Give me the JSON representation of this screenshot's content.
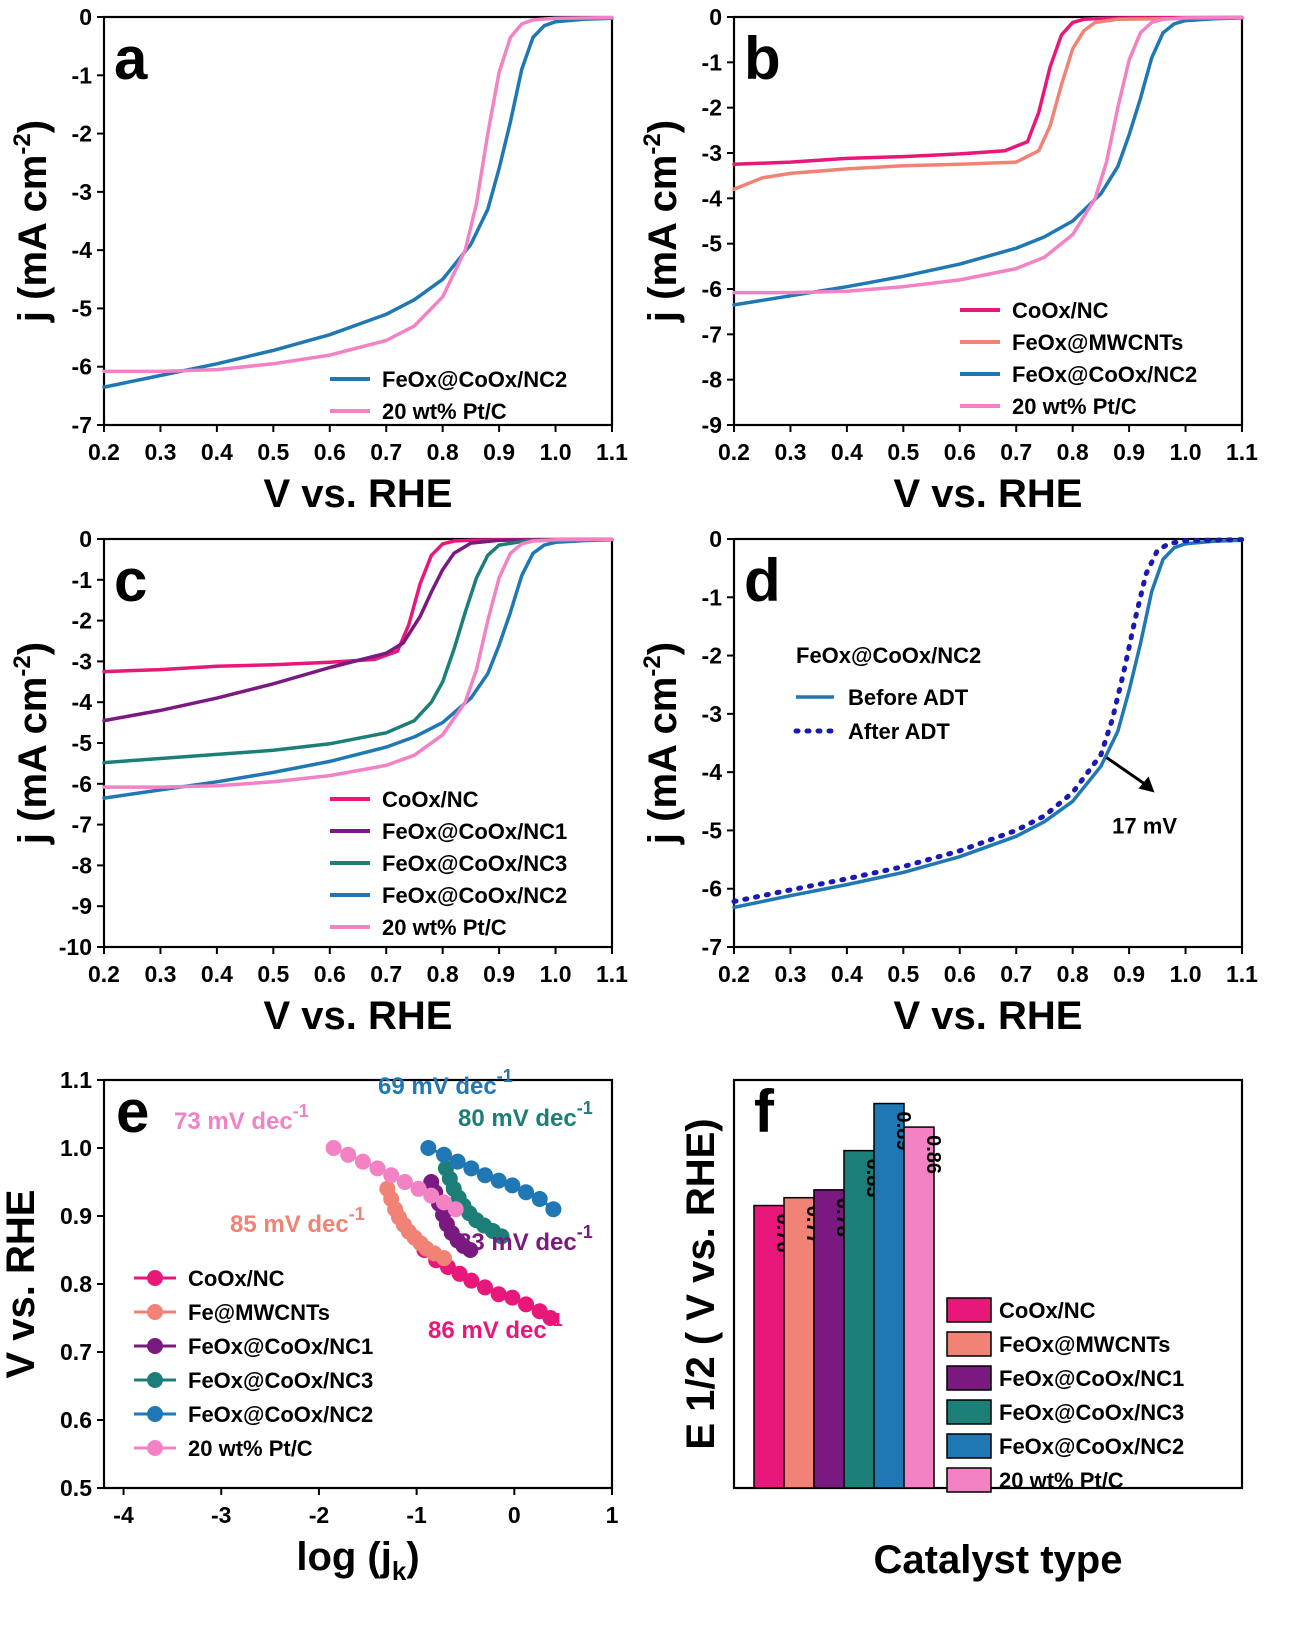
{
  "colors": {
    "CoOx/NC": "#e8177a",
    "FeOx@MWCNTs": "#f08276",
    "FeOx@CoOx/NC1": "#7a1a80",
    "FeOx@CoOx/NC3": "#1b7f78",
    "FeOx@CoOx/NC2": "#1f77b4",
    "20 wt% Pt/C": "#f382c4",
    "after_adt": "#1a1ab0"
  },
  "chart_data": [
    {
      "id": "a",
      "panel_label": "a",
      "type": "line",
      "xlabel": "V vs. RHE",
      "ylabel_main": "j (mA cm",
      "ylabel_sup": "-2",
      "ylabel_tail": ")",
      "xlim": [
        0.2,
        1.1
      ],
      "ylim": [
        -7,
        0
      ],
      "xticks": [
        0.2,
        0.3,
        0.4,
        0.5,
        0.6,
        0.7,
        0.8,
        0.9,
        1.0,
        1.1
      ],
      "xtick_labels": [
        "0.2",
        "0.3",
        "0.4",
        "0.5",
        "0.6",
        "0.7",
        "0.8",
        "0.9",
        "1.0",
        "1.1"
      ],
      "yticks": [
        0,
        -1,
        -2,
        -3,
        -4,
        -5,
        -6,
        -7
      ],
      "ytick_labels": [
        "0",
        "-1",
        "-2",
        "-3",
        "-4",
        "-5",
        "-6",
        "-7"
      ],
      "legend_position": "bottom-right",
      "series": [
        {
          "name": "FeOx@CoOx/NC2",
          "color": "#1f77b4",
          "x": [
            0.2,
            0.3,
            0.4,
            0.5,
            0.6,
            0.7,
            0.75,
            0.8,
            0.85,
            0.88,
            0.9,
            0.92,
            0.94,
            0.96,
            0.98,
            1.0,
            1.05,
            1.1
          ],
          "y": [
            -6.35,
            -6.15,
            -5.95,
            -5.72,
            -5.45,
            -5.1,
            -4.85,
            -4.5,
            -3.9,
            -3.3,
            -2.6,
            -1.8,
            -0.9,
            -0.35,
            -0.15,
            -0.08,
            -0.04,
            -0.02
          ]
        },
        {
          "name": "20 wt% Pt/C",
          "color": "#f382c4",
          "x": [
            0.2,
            0.3,
            0.4,
            0.5,
            0.6,
            0.7,
            0.75,
            0.8,
            0.84,
            0.86,
            0.88,
            0.9,
            0.92,
            0.94,
            0.96,
            1.0,
            1.1
          ],
          "y": [
            -6.08,
            -6.08,
            -6.05,
            -5.95,
            -5.8,
            -5.55,
            -5.3,
            -4.8,
            -4.0,
            -3.2,
            -2.0,
            -0.95,
            -0.35,
            -0.12,
            -0.05,
            -0.02,
            -0.01
          ]
        }
      ]
    },
    {
      "id": "b",
      "panel_label": "b",
      "type": "line",
      "xlabel": "V vs. RHE",
      "ylabel_main": "j (mA cm",
      "ylabel_sup": "-2",
      "ylabel_tail": ")",
      "xlim": [
        0.2,
        1.1
      ],
      "ylim": [
        -9,
        0
      ],
      "xticks": [
        0.2,
        0.3,
        0.4,
        0.5,
        0.6,
        0.7,
        0.8,
        0.9,
        1.0,
        1.1
      ],
      "xtick_labels": [
        "0.2",
        "0.3",
        "0.4",
        "0.5",
        "0.6",
        "0.7",
        "0.8",
        "0.9",
        "1.0",
        "1.1"
      ],
      "yticks": [
        0,
        -1,
        -2,
        -3,
        -4,
        -5,
        -6,
        -7,
        -8,
        -9
      ],
      "ytick_labels": [
        "0",
        "-1",
        "-2",
        "-3",
        "-4",
        "-5",
        "-6",
        "-7",
        "-8",
        "-9"
      ],
      "legend_position": "bottom-right",
      "series": [
        {
          "name": "CoOx/NC",
          "color": "#e8177a",
          "x": [
            0.2,
            0.3,
            0.4,
            0.5,
            0.6,
            0.68,
            0.72,
            0.74,
            0.76,
            0.78,
            0.8,
            0.82,
            0.85,
            0.9,
            1.1
          ],
          "y": [
            -3.25,
            -3.2,
            -3.12,
            -3.08,
            -3.02,
            -2.95,
            -2.75,
            -2.1,
            -1.1,
            -0.4,
            -0.12,
            -0.05,
            -0.03,
            -0.02,
            -0.01
          ]
        },
        {
          "name": "FeOx@MWCNTs",
          "color": "#f08276",
          "x": [
            0.2,
            0.25,
            0.3,
            0.4,
            0.5,
            0.6,
            0.7,
            0.74,
            0.76,
            0.78,
            0.8,
            0.82,
            0.84,
            0.88,
            1.1
          ],
          "y": [
            -3.8,
            -3.55,
            -3.45,
            -3.35,
            -3.28,
            -3.25,
            -3.2,
            -2.95,
            -2.4,
            -1.5,
            -0.7,
            -0.3,
            -0.12,
            -0.05,
            -0.02
          ]
        },
        {
          "name": "FeOx@CoOx/NC2",
          "color": "#1f77b4",
          "x": [
            0.2,
            0.3,
            0.4,
            0.5,
            0.6,
            0.7,
            0.75,
            0.8,
            0.85,
            0.88,
            0.9,
            0.92,
            0.94,
            0.96,
            0.98,
            1.0,
            1.05,
            1.1
          ],
          "y": [
            -6.35,
            -6.15,
            -5.95,
            -5.72,
            -5.45,
            -5.1,
            -4.85,
            -4.5,
            -3.9,
            -3.3,
            -2.6,
            -1.8,
            -0.9,
            -0.35,
            -0.15,
            -0.08,
            -0.04,
            -0.02
          ]
        },
        {
          "name": "20 wt% Pt/C",
          "color": "#f382c4",
          "x": [
            0.2,
            0.3,
            0.4,
            0.5,
            0.6,
            0.7,
            0.75,
            0.8,
            0.84,
            0.86,
            0.88,
            0.9,
            0.92,
            0.94,
            0.96,
            1.0,
            1.1
          ],
          "y": [
            -6.08,
            -6.08,
            -6.05,
            -5.95,
            -5.8,
            -5.55,
            -5.3,
            -4.8,
            -4.0,
            -3.2,
            -2.0,
            -0.95,
            -0.35,
            -0.12,
            -0.05,
            -0.02,
            -0.01
          ]
        }
      ]
    },
    {
      "id": "c",
      "panel_label": "c",
      "type": "line",
      "xlabel": "V vs. RHE",
      "ylabel_main": "j (mA cm",
      "ylabel_sup": "-2",
      "ylabel_tail": ")",
      "xlim": [
        0.2,
        1.1
      ],
      "ylim": [
        -10,
        0
      ],
      "xticks": [
        0.2,
        0.3,
        0.4,
        0.5,
        0.6,
        0.7,
        0.8,
        0.9,
        1.0,
        1.1
      ],
      "xtick_labels": [
        "0.2",
        "0.3",
        "0.4",
        "0.5",
        "0.6",
        "0.7",
        "0.8",
        "0.9",
        "1.0",
        "1.1"
      ],
      "yticks": [
        0,
        -1,
        -2,
        -3,
        -4,
        -5,
        -6,
        -7,
        -8,
        -9,
        -10
      ],
      "ytick_labels": [
        "0",
        "-1",
        "-2",
        "-3",
        "-4",
        "-5",
        "-6",
        "-7",
        "-8",
        "-9",
        "-10"
      ],
      "legend_position": "bottom-right",
      "series": [
        {
          "name": "CoOx/NC",
          "color": "#e8177a",
          "x": [
            0.2,
            0.3,
            0.4,
            0.5,
            0.6,
            0.68,
            0.72,
            0.74,
            0.76,
            0.78,
            0.8,
            0.82,
            0.85,
            0.9,
            1.1
          ],
          "y": [
            -3.25,
            -3.2,
            -3.12,
            -3.08,
            -3.02,
            -2.95,
            -2.75,
            -2.1,
            -1.1,
            -0.4,
            -0.12,
            -0.05,
            -0.03,
            -0.02,
            -0.01
          ]
        },
        {
          "name": "FeOx@CoOx/NC1",
          "color": "#7a1a80",
          "x": [
            0.2,
            0.3,
            0.4,
            0.5,
            0.6,
            0.7,
            0.73,
            0.76,
            0.78,
            0.8,
            0.82,
            0.85,
            0.9,
            1.1
          ],
          "y": [
            -4.45,
            -4.2,
            -3.9,
            -3.55,
            -3.15,
            -2.8,
            -2.55,
            -1.9,
            -1.3,
            -0.75,
            -0.35,
            -0.1,
            -0.03,
            -0.01
          ]
        },
        {
          "name": "FeOx@CoOx/NC3",
          "color": "#1b7f78",
          "x": [
            0.2,
            0.3,
            0.4,
            0.5,
            0.6,
            0.7,
            0.75,
            0.78,
            0.8,
            0.82,
            0.84,
            0.86,
            0.88,
            0.9,
            0.95,
            1.1
          ],
          "y": [
            -5.48,
            -5.38,
            -5.28,
            -5.18,
            -5.02,
            -4.75,
            -4.45,
            -4.0,
            -3.5,
            -2.7,
            -1.8,
            -0.95,
            -0.4,
            -0.15,
            -0.04,
            -0.01
          ]
        },
        {
          "name": "FeOx@CoOx/NC2",
          "color": "#1f77b4",
          "x": [
            0.2,
            0.3,
            0.4,
            0.5,
            0.6,
            0.7,
            0.75,
            0.8,
            0.85,
            0.88,
            0.9,
            0.92,
            0.94,
            0.96,
            0.98,
            1.0,
            1.05,
            1.1
          ],
          "y": [
            -6.35,
            -6.15,
            -5.95,
            -5.72,
            -5.45,
            -5.1,
            -4.85,
            -4.5,
            -3.9,
            -3.3,
            -2.6,
            -1.8,
            -0.9,
            -0.35,
            -0.15,
            -0.08,
            -0.04,
            -0.02
          ]
        },
        {
          "name": "20 wt% Pt/C",
          "color": "#f382c4",
          "x": [
            0.2,
            0.3,
            0.4,
            0.5,
            0.6,
            0.7,
            0.75,
            0.8,
            0.84,
            0.86,
            0.88,
            0.9,
            0.92,
            0.94,
            0.96,
            1.0,
            1.1
          ],
          "y": [
            -6.08,
            -6.08,
            -6.05,
            -5.95,
            -5.8,
            -5.55,
            -5.3,
            -4.8,
            -4.0,
            -3.2,
            -2.0,
            -0.95,
            -0.35,
            -0.12,
            -0.05,
            -0.02,
            -0.01
          ]
        }
      ]
    },
    {
      "id": "d",
      "panel_label": "d",
      "type": "line",
      "xlabel": "V vs. RHE",
      "ylabel_main": "j (mA cm",
      "ylabel_sup": "-2",
      "ylabel_tail": ")",
      "xlim": [
        0.2,
        1.1
      ],
      "ylim": [
        -7,
        0
      ],
      "xticks": [
        0.2,
        0.3,
        0.4,
        0.5,
        0.6,
        0.7,
        0.8,
        0.9,
        1.0,
        1.1
      ],
      "xtick_labels": [
        "0.2",
        "0.3",
        "0.4",
        "0.5",
        "0.6",
        "0.7",
        "0.8",
        "0.9",
        "1.0",
        "1.1"
      ],
      "yticks": [
        0,
        -1,
        -2,
        -3,
        -4,
        -5,
        -6,
        -7
      ],
      "ytick_labels": [
        "0",
        "-1",
        "-2",
        "-3",
        "-4",
        "-5",
        "-6",
        "-7"
      ],
      "legend_title": "FeOx@CoOx/NC2",
      "legend_position": "top-left",
      "annotation": "17 mV",
      "series": [
        {
          "name": "Before ADT",
          "color": "#1f77b4",
          "dash": "solid",
          "x": [
            0.2,
            0.3,
            0.4,
            0.5,
            0.6,
            0.7,
            0.75,
            0.8,
            0.85,
            0.88,
            0.9,
            0.92,
            0.94,
            0.96,
            0.98,
            1.0,
            1.05,
            1.1
          ],
          "y": [
            -6.32,
            -6.12,
            -5.93,
            -5.72,
            -5.45,
            -5.1,
            -4.85,
            -4.5,
            -3.9,
            -3.3,
            -2.6,
            -1.8,
            -0.9,
            -0.35,
            -0.15,
            -0.08,
            -0.04,
            -0.02
          ]
        },
        {
          "name": "After ADT",
          "color": "#1a1ab0",
          "dash": "dotted",
          "x": [
            0.2,
            0.3,
            0.4,
            0.5,
            0.6,
            0.7,
            0.75,
            0.8,
            0.85,
            0.87,
            0.89,
            0.91,
            0.93,
            0.95,
            0.97,
            1.0,
            1.1
          ],
          "y": [
            -6.22,
            -6.02,
            -5.83,
            -5.62,
            -5.35,
            -5.0,
            -4.75,
            -4.35,
            -3.7,
            -3.1,
            -2.3,
            -1.4,
            -0.6,
            -0.2,
            -0.08,
            -0.03,
            -0.01
          ]
        }
      ]
    },
    {
      "id": "e",
      "panel_label": "e",
      "type": "scatter",
      "xlabel_main": "log (j",
      "xlabel_sub": "k",
      "xlabel_tail": ")",
      "ylabel": "V vs. RHE",
      "xlim": [
        -4.2,
        1
      ],
      "ylim": [
        0.5,
        1.1
      ],
      "xticks": [
        -4,
        -3,
        -2,
        -1,
        0,
        1
      ],
      "xtick_labels": [
        "-4",
        "-3",
        "-2",
        "-1",
        "0",
        "1"
      ],
      "yticks": [
        0.5,
        0.6,
        0.7,
        0.8,
        0.9,
        1.0,
        1.1
      ],
      "ytick_labels": [
        "0.5",
        "0.6",
        "0.7",
        "0.8",
        "0.9",
        "1.0",
        "1.1"
      ],
      "legend_position": "bottom-left",
      "tafel_labels": [
        {
          "text": "73 mV dec",
          "sup": "-1",
          "color": "#f382c4"
        },
        {
          "text": "69 mV dec",
          "sup": "-1",
          "color": "#1f77b4"
        },
        {
          "text": "80 mV dec",
          "sup": "-1",
          "color": "#1b7f78"
        },
        {
          "text": "85 mV dec",
          "sup": "-1",
          "color": "#f08276"
        },
        {
          "text": "83 mV dec",
          "sup": "-1",
          "color": "#7a1a80"
        },
        {
          "text": "86 mV dec",
          "sup": "-1",
          "color": "#e8177a"
        }
      ],
      "series": [
        {
          "name": "CoOx/NC",
          "color": "#e8177a",
          "x": [
            -0.92,
            -0.8,
            -0.68,
            -0.56,
            -0.44,
            -0.3,
            -0.16,
            -0.02,
            0.12,
            0.26,
            0.37
          ],
          "y": [
            0.85,
            0.835,
            0.825,
            0.815,
            0.805,
            0.795,
            0.785,
            0.78,
            0.77,
            0.76,
            0.75
          ]
        },
        {
          "name": "Fe@MWCNTs",
          "color": "#f08276",
          "x": [
            -1.3,
            -1.26,
            -1.22,
            -1.18,
            -1.13,
            -1.08,
            -1.02,
            -0.96,
            -0.9,
            -0.82,
            -0.72
          ],
          "y": [
            0.94,
            0.925,
            0.91,
            0.898,
            0.887,
            0.877,
            0.868,
            0.86,
            0.852,
            0.845,
            0.838
          ]
        },
        {
          "name": "FeOx@CoOx/NC1",
          "color": "#7a1a80",
          "x": [
            -0.85,
            -0.81,
            -0.77,
            -0.73,
            -0.69,
            -0.64,
            -0.58,
            -0.52,
            -0.45
          ],
          "y": [
            0.95,
            0.935,
            0.918,
            0.902,
            0.888,
            0.875,
            0.864,
            0.856,
            0.85
          ]
        },
        {
          "name": "FeOx@CoOx/NC3",
          "color": "#1b7f78",
          "x": [
            -0.7,
            -0.66,
            -0.62,
            -0.57,
            -0.52,
            -0.46,
            -0.39,
            -0.31,
            -0.22,
            -0.13
          ],
          "y": [
            0.97,
            0.955,
            0.94,
            0.927,
            0.915,
            0.904,
            0.894,
            0.886,
            0.878,
            0.87
          ]
        },
        {
          "name": "FeOx@CoOx/NC2",
          "color": "#1f77b4",
          "x": [
            -0.88,
            -0.72,
            -0.58,
            -0.44,
            -0.3,
            -0.16,
            -0.02,
            0.12,
            0.26,
            0.4
          ],
          "y": [
            1.0,
            0.99,
            0.98,
            0.97,
            0.96,
            0.952,
            0.945,
            0.935,
            0.925,
            0.91
          ]
        },
        {
          "name": "20 wt% Pt/C",
          "color": "#f382c4",
          "x": [
            -1.85,
            -1.7,
            -1.55,
            -1.4,
            -1.26,
            -1.12,
            -0.98,
            -0.85,
            -0.72,
            -0.6
          ],
          "y": [
            1.0,
            0.99,
            0.98,
            0.97,
            0.96,
            0.95,
            0.94,
            0.93,
            0.92,
            0.91
          ]
        }
      ]
    },
    {
      "id": "f",
      "panel_label": "f",
      "type": "bar",
      "xlabel": "Catalyst type",
      "ylabel": "E 1/2 ( V vs. RHE)",
      "ylim": [
        0.4,
        0.92
      ],
      "legend_position": "bottom-right",
      "categories": [
        "CoOx/NC",
        "FeOx@MWCNTs",
        "FeOx@CoOx/NC1",
        "FeOx@CoOx/NC3",
        "FeOx@CoOx/NC2",
        "20 wt% Pt/C"
      ],
      "values": [
        0.76,
        0.77,
        0.78,
        0.83,
        0.89,
        0.86
      ],
      "value_labels": [
        "0.76",
        "0.77",
        "0.78",
        "0.83",
        "0.89",
        "0.86"
      ],
      "bar_colors": [
        "#e8177a",
        "#f08276",
        "#7a1a80",
        "#1b7f78",
        "#1f77b4",
        "#f382c4"
      ]
    }
  ]
}
